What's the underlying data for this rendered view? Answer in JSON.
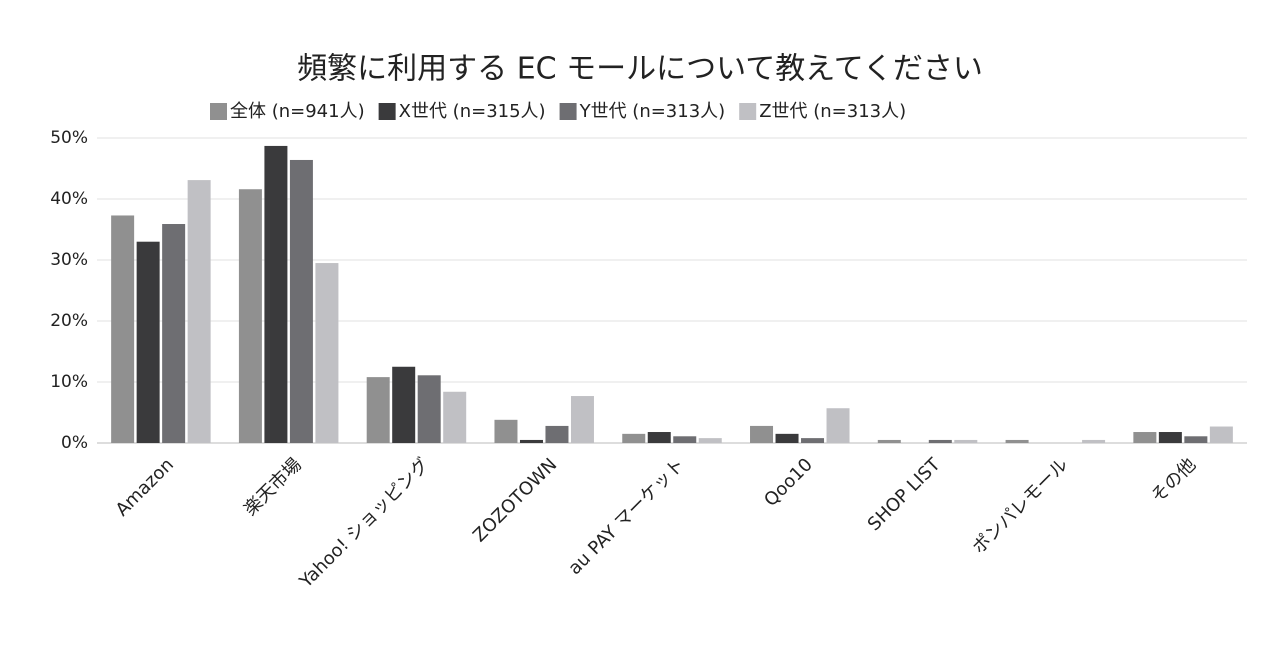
{
  "chart_data": {
    "type": "bar",
    "title": "頻繁に利用する EC モールについて教えてください",
    "categories": [
      "Amazon",
      "楽天市場",
      "Yahoo! ショッピング",
      "ZOZOTOWN",
      "au PAY マーケット",
      "Qoo10",
      "SHOP LIST",
      "ポンパレモール",
      "その他"
    ],
    "series": [
      {
        "name": "全体 (n=941人)",
        "color": "#909090",
        "values": [
          37.3,
          41.6,
          10.8,
          3.8,
          1.5,
          2.8,
          0.5,
          0.5,
          1.8
        ]
      },
      {
        "name": "X世代 (n=315人)",
        "color": "#3a3a3c",
        "values": [
          33,
          48.7,
          12.5,
          0.5,
          1.8,
          1.5,
          0,
          0,
          1.8
        ]
      },
      {
        "name": "Y世代 (n=313人)",
        "color": "#6e6e72",
        "values": [
          35.9,
          46.4,
          11.1,
          2.8,
          1.1,
          0.8,
          0.5,
          0,
          1.1
        ]
      },
      {
        "name": "Z世代 (n=313人)",
        "color": "#c0c0c4",
        "values": [
          43.1,
          29.5,
          8.4,
          7.7,
          0.8,
          5.7,
          0.5,
          0.5,
          2.7
        ]
      }
    ],
    "ylim": [
      0,
      50
    ],
    "yticks": [
      {
        "value": 0,
        "label": "0%"
      },
      {
        "value": 10,
        "label": "10%"
      },
      {
        "value": 20,
        "label": "20%"
      },
      {
        "value": 30,
        "label": "30%"
      },
      {
        "value": 40,
        "label": "40%"
      },
      {
        "value": 50,
        "label": "50%"
      }
    ],
    "grid": true,
    "legend": "top"
  }
}
